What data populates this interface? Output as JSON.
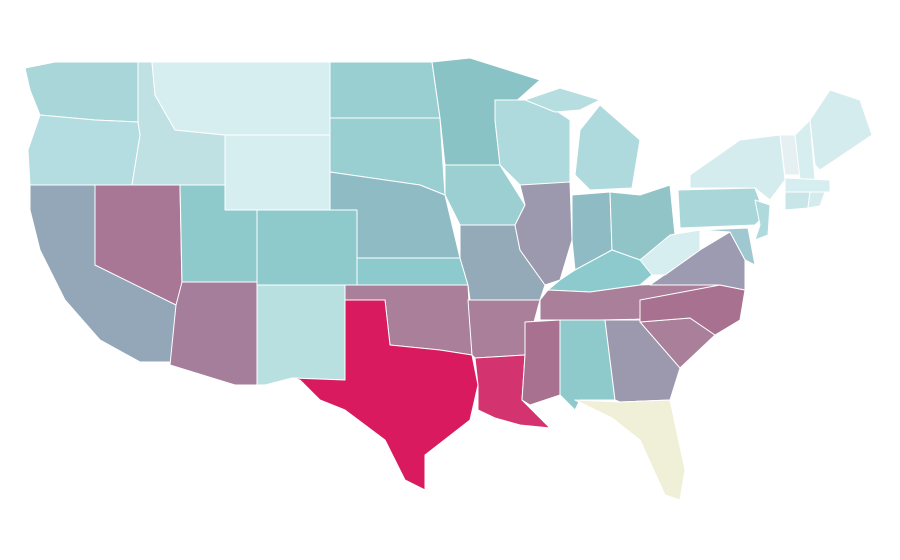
{
  "map": {
    "fills": [
      "#a9d6d9",
      "#b3dde0",
      "#93a7b8",
      "#a97796",
      "#bfe1e4",
      "#d7eef0",
      "#d7eef0",
      "#8ec9cc",
      "#8ec9cc",
      "#a57e9c",
      "#b8e0e1",
      "#99cfd1",
      "#99cfd1",
      "#8fbcc4",
      "#8ccace",
      "#a97f9a",
      "#d91a5f",
      "#89c3c6",
      "#9ccfd2",
      "#94aab8",
      "#a97f9a",
      "#d3336f",
      "#afdadd",
      "#9c98ae",
      "#afdadd",
      "#8fbcc4",
      "#90c4c7",
      "#8ccace",
      "#a97f9a",
      "#a8718f",
      "#8ec9cc",
      "#9c98ae",
      "#f0f0d8",
      "#a97f9a",
      "#a8718f",
      "#9c9bb2",
      "#d7eef0",
      "#a9d6d9",
      "#d4ecee",
      "#a0c8d0",
      "#afdadd",
      "#e6f0f2",
      "#d7eef0",
      "#d4ecee",
      "#d7eef0",
      "#c8e6e8",
      "#d4ecee",
      "#b6dee0"
    ]
  }
}
